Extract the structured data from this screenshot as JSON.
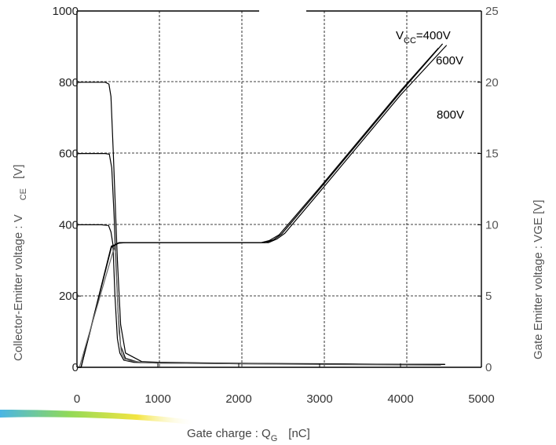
{
  "chart_data": {
    "type": "line",
    "title": "",
    "xlabel": {
      "main": "Gate charge  :  Q",
      "sub": "G",
      "unit": "[nC]"
    },
    "ylabel_left": {
      "main": "Collector-Emitter voltage  :  V",
      "sub": "CE",
      "unit": "[V]"
    },
    "ylabel_right": "Gate Emitter voltage : VGE [V]",
    "xlim": [
      0,
      5000
    ],
    "ylim_left": [
      0,
      1000
    ],
    "ylim_right": [
      0,
      25
    ],
    "x_ticks": [
      "0",
      "1000",
      "2000",
      "3000",
      "4000",
      "5000"
    ],
    "y_left_ticks": [
      "0",
      "200",
      "400",
      "600",
      "800",
      "1000"
    ],
    "y_right_ticks": [
      "0",
      "5",
      "10",
      "15",
      "20",
      "25"
    ],
    "grid": true,
    "annotations": [
      {
        "text": "V",
        "sub": "CC",
        "suffix": "=400V"
      },
      {
        "text": "600V"
      },
      {
        "text": "800V"
      }
    ],
    "series": [
      {
        "axis": "left",
        "color": "#000000",
        "points": [
          [
            0,
            400
          ],
          [
            300,
            400
          ],
          [
            390,
            398
          ],
          [
            420,
            380
          ],
          [
            445,
            345
          ],
          [
            470,
            200
          ],
          [
            500,
            80
          ],
          [
            530,
            40
          ],
          [
            580,
            20
          ],
          [
            700,
            14
          ],
          [
            1000,
            12
          ],
          [
            2000,
            10
          ],
          [
            3000,
            9
          ],
          [
            4000,
            8
          ],
          [
            4550,
            8
          ]
        ]
      },
      {
        "axis": "left",
        "color": "#000000",
        "points": [
          [
            0,
            600
          ],
          [
            350,
            600
          ],
          [
            400,
            598
          ],
          [
            430,
            560
          ],
          [
            460,
            420
          ],
          [
            480,
            300
          ],
          [
            510,
            150
          ],
          [
            540,
            60
          ],
          [
            600,
            25
          ],
          [
            750,
            15
          ],
          [
            1000,
            13
          ],
          [
            2000,
            11
          ],
          [
            3000,
            9
          ],
          [
            4000,
            8
          ],
          [
            4550,
            8
          ]
        ]
      },
      {
        "axis": "left",
        "color": "#000000",
        "points": [
          [
            0,
            800
          ],
          [
            350,
            800
          ],
          [
            395,
            795
          ],
          [
            420,
            760
          ],
          [
            450,
            600
          ],
          [
            480,
            420
          ],
          [
            500,
            300
          ],
          [
            540,
            120
          ],
          [
            600,
            40
          ],
          [
            800,
            16
          ],
          [
            1000,
            14
          ],
          [
            2000,
            11
          ],
          [
            3000,
            10
          ],
          [
            4000,
            8
          ],
          [
            4550,
            8
          ]
        ]
      },
      {
        "axis": "right",
        "color": "#000000",
        "points": [
          [
            0,
            0
          ],
          [
            50,
            0
          ],
          [
            420,
            8.4
          ],
          [
            460,
            8.5
          ],
          [
            500,
            8.7
          ],
          [
            600,
            8.75
          ],
          [
            1000,
            8.75
          ],
          [
            2280,
            8.75
          ],
          [
            2380,
            8.9
          ],
          [
            2500,
            9.3
          ],
          [
            3000,
            12.6
          ],
          [
            4000,
            19.4
          ],
          [
            4470,
            22.4
          ]
        ]
      },
      {
        "axis": "right",
        "color": "#000000",
        "points": [
          [
            0,
            0
          ],
          [
            50,
            0
          ],
          [
            425,
            8.5
          ],
          [
            470,
            8.6
          ],
          [
            520,
            8.75
          ],
          [
            1000,
            8.75
          ],
          [
            2330,
            8.75
          ],
          [
            2430,
            8.95
          ],
          [
            2530,
            9.35
          ],
          [
            3000,
            12.5
          ],
          [
            4000,
            19.3
          ],
          [
            4520,
            22.7
          ]
        ]
      },
      {
        "axis": "right",
        "color": "#000000",
        "points": [
          [
            0,
            0
          ],
          [
            50,
            0
          ],
          [
            430,
            8.5
          ],
          [
            480,
            8.6
          ],
          [
            530,
            8.75
          ],
          [
            1000,
            8.75
          ],
          [
            2370,
            8.75
          ],
          [
            2470,
            9.0
          ],
          [
            2570,
            9.4
          ],
          [
            3000,
            12.3
          ],
          [
            4000,
            19.1
          ],
          [
            4570,
            22.6
          ]
        ]
      },
      {
        "axis": "right",
        "color": "#666666",
        "points": [
          [
            0,
            0
          ],
          [
            30,
            0
          ],
          [
            460,
            8.4
          ],
          [
            480,
            8.0
          ],
          [
            500,
            5.0
          ],
          [
            520,
            2.5
          ],
          [
            550,
            1.0
          ],
          [
            600,
            0.5
          ],
          [
            800,
            0.35
          ],
          [
            1000,
            0.3
          ],
          [
            2000,
            0.25
          ],
          [
            3000,
            0.2
          ],
          [
            4500,
            0.15
          ]
        ]
      }
    ]
  }
}
